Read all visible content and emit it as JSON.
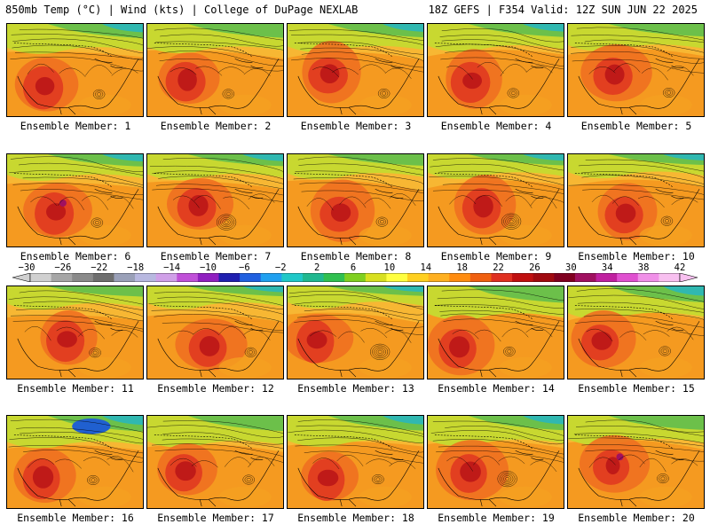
{
  "header": {
    "left": "850mb Temp (°C) | Wind (kts) | College of DuPage NEXLAB",
    "right": "18Z GEFS | F354 Valid: 12Z SUN JUN 22 2025"
  },
  "panels": [
    {
      "label": "Ensemble Member: 1"
    },
    {
      "label": "Ensemble Member: 2"
    },
    {
      "label": "Ensemble Member: 3"
    },
    {
      "label": "Ensemble Member: 4"
    },
    {
      "label": "Ensemble Member: 5"
    },
    {
      "label": "Ensemble Member: 6"
    },
    {
      "label": "Ensemble Member: 7"
    },
    {
      "label": "Ensemble Member: 8"
    },
    {
      "label": "Ensemble Member: 9"
    },
    {
      "label": "Ensemble Member: 10"
    },
    {
      "label": "Ensemble Member: 11"
    },
    {
      "label": "Ensemble Member: 12"
    },
    {
      "label": "Ensemble Member: 13"
    },
    {
      "label": "Ensemble Member: 14"
    },
    {
      "label": "Ensemble Member: 15"
    },
    {
      "label": "Ensemble Member: 16"
    },
    {
      "label": "Ensemble Member: 17"
    },
    {
      "label": "Ensemble Member: 18"
    },
    {
      "label": "Ensemble Member: 19"
    },
    {
      "label": "Ensemble Member: 20"
    }
  ],
  "colorbar": {
    "ticks": [
      "−30",
      "−26",
      "−22",
      "−18",
      "−14",
      "−10",
      "−6",
      "−2",
      "2",
      "6",
      "10",
      "14",
      "18",
      "22",
      "26",
      "30",
      "34",
      "38",
      "42"
    ],
    "colors": [
      "#d0d0d0",
      "#a6a6a6",
      "#8a8a8a",
      "#6e6e6e",
      "#9aa0b8",
      "#b8b8e0",
      "#d0a0e8",
      "#c050d8",
      "#9020c0",
      "#2020b0",
      "#2060e0",
      "#20a0f0",
      "#20c8c8",
      "#20b890",
      "#30c050",
      "#80d020",
      "#d8e020",
      "#ffff40",
      "#ffd020",
      "#ffb020",
      "#ff8c10",
      "#f06010",
      "#e03020",
      "#c01010",
      "#a00a10",
      "#800020",
      "#a01060",
      "#c020a0",
      "#e050d0",
      "#f090e8",
      "#f8c0f0"
    ]
  }
}
